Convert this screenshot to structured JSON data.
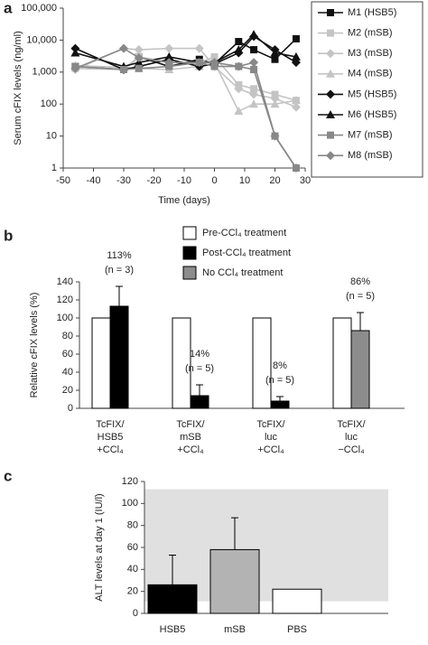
{
  "chart_data": [
    {
      "type": "line",
      "label": "a",
      "ylabel": "Serum cFIX levels (ng/ml)",
      "xlabel": "Time (days)",
      "log_y": true,
      "xlim": [
        -50,
        30
      ],
      "xticks": [
        -50,
        -40,
        -30,
        -20,
        -10,
        0,
        10,
        20,
        30
      ],
      "ylim": [
        1,
        100000
      ],
      "yticks": [
        1,
        10,
        100,
        {
          "value": 1000,
          "label": "1,000"
        },
        {
          "value": 10000,
          "label": "10,000"
        },
        {
          "value": 100000,
          "label": "100,000"
        }
      ],
      "legend": "right",
      "x": [
        -46,
        -30,
        -25,
        -15,
        -5,
        0,
        8,
        13,
        20,
        27
      ],
      "series": [
        {
          "name": "M1 (HSB5)",
          "color": "#111111",
          "marker": "square",
          "values": [
            1500,
            1200,
            3000,
            1500,
            2500,
            1800,
            9000,
            5000,
            2500,
            11000
          ]
        },
        {
          "name": "M2 (mSB)",
          "color": "#c4c4c4",
          "marker": "square",
          "values": [
            1300,
            1200,
            3000,
            2000,
            2000,
            3000,
            400,
            300,
            200,
            130
          ]
        },
        {
          "name": "M3 (mSB)",
          "color": "#c4c4c4",
          "marker": "diamond",
          "values": [
            1200,
            5500,
            5000,
            5500,
            5500,
            1500,
            300,
            200,
            150,
            80
          ]
        },
        {
          "name": "M4 (mSB)",
          "color": "#c4c4c4",
          "marker": "triangle",
          "values": [
            1600,
            1400,
            1300,
            1200,
            1500,
            2000,
            60,
            100,
            100,
            130
          ]
        },
        {
          "name": "M5 (HSB5)",
          "color": "#111111",
          "marker": "diamond",
          "values": [
            5500,
            1200,
            1500,
            2500,
            1500,
            1800,
            4000,
            13000,
            5000,
            2000
          ]
        },
        {
          "name": "M6 (HSB5)",
          "color": "#111111",
          "marker": "triangle",
          "values": [
            4000,
            1500,
            2000,
            3000,
            2000,
            2000,
            5000,
            15000,
            4000,
            3000
          ]
        },
        {
          "name": "M7 (mSB)",
          "color": "#888888",
          "marker": "square",
          "values": [
            1500,
            1200,
            1300,
            1500,
            2000,
            1500,
            1500,
            1200,
            10,
            1
          ]
        },
        {
          "name": "M8 (mSB)",
          "color": "#888888",
          "marker": "diamond",
          "values": [
            1300,
            5500,
            2800,
            2000,
            2000,
            2000,
            1500,
            2000,
            10,
            1
          ]
        }
      ]
    },
    {
      "type": "bar",
      "label": "b",
      "ylabel": "Relative cFIX levels (%)",
      "ylim": [
        0,
        140
      ],
      "yticks": [
        0,
        20,
        40,
        60,
        80,
        100,
        120,
        140
      ],
      "legend": "top",
      "categories": [
        "TcFIX/\nHSB5\n+CCl₄",
        "TcFIX/\nmSB\n+CCl₄",
        "TcFIX/\nluc\n+CCl₄",
        "TcFIX/\nluc\n−CCl₄"
      ],
      "series": [
        {
          "name": "Pre-CCl₄ treatment",
          "color": "#ffffff",
          "values": [
            100,
            100,
            100,
            100
          ]
        },
        {
          "name": "Post-CCl₄ treatment",
          "color": "#000000",
          "values": [
            113,
            14,
            8,
            null
          ],
          "errors": [
            22,
            12,
            5,
            null
          ],
          "value_labels": [
            "113%",
            "14%",
            "8%",
            null
          ],
          "sample_labels": [
            "(n = 3)",
            "(n = 5)",
            "(n = 5)",
            null
          ]
        },
        {
          "name": "No CCl₄ treatment",
          "color": "#8c8c8c",
          "values": [
            null,
            null,
            null,
            86
          ],
          "errors": [
            null,
            null,
            null,
            20
          ],
          "value_labels": [
            null,
            null,
            null,
            "86%"
          ],
          "sample_labels": [
            null,
            null,
            null,
            "(n = 5)"
          ]
        }
      ]
    },
    {
      "type": "bar",
      "label": "c",
      "ylabel": "ALT levels at day 1 (IU/l)",
      "ylim": [
        0,
        120
      ],
      "yticks": [
        0,
        20,
        40,
        60,
        80,
        100,
        120
      ],
      "reference_band": [
        11,
        113
      ],
      "band_color": "#e0e0e0",
      "categories": [
        "HSB5",
        "mSB",
        "PBS"
      ],
      "values": [
        26,
        58,
        22
      ],
      "errors": [
        27,
        29,
        null
      ],
      "colors": [
        "#000000",
        "#b3b3b3",
        "#ffffff"
      ]
    }
  ]
}
